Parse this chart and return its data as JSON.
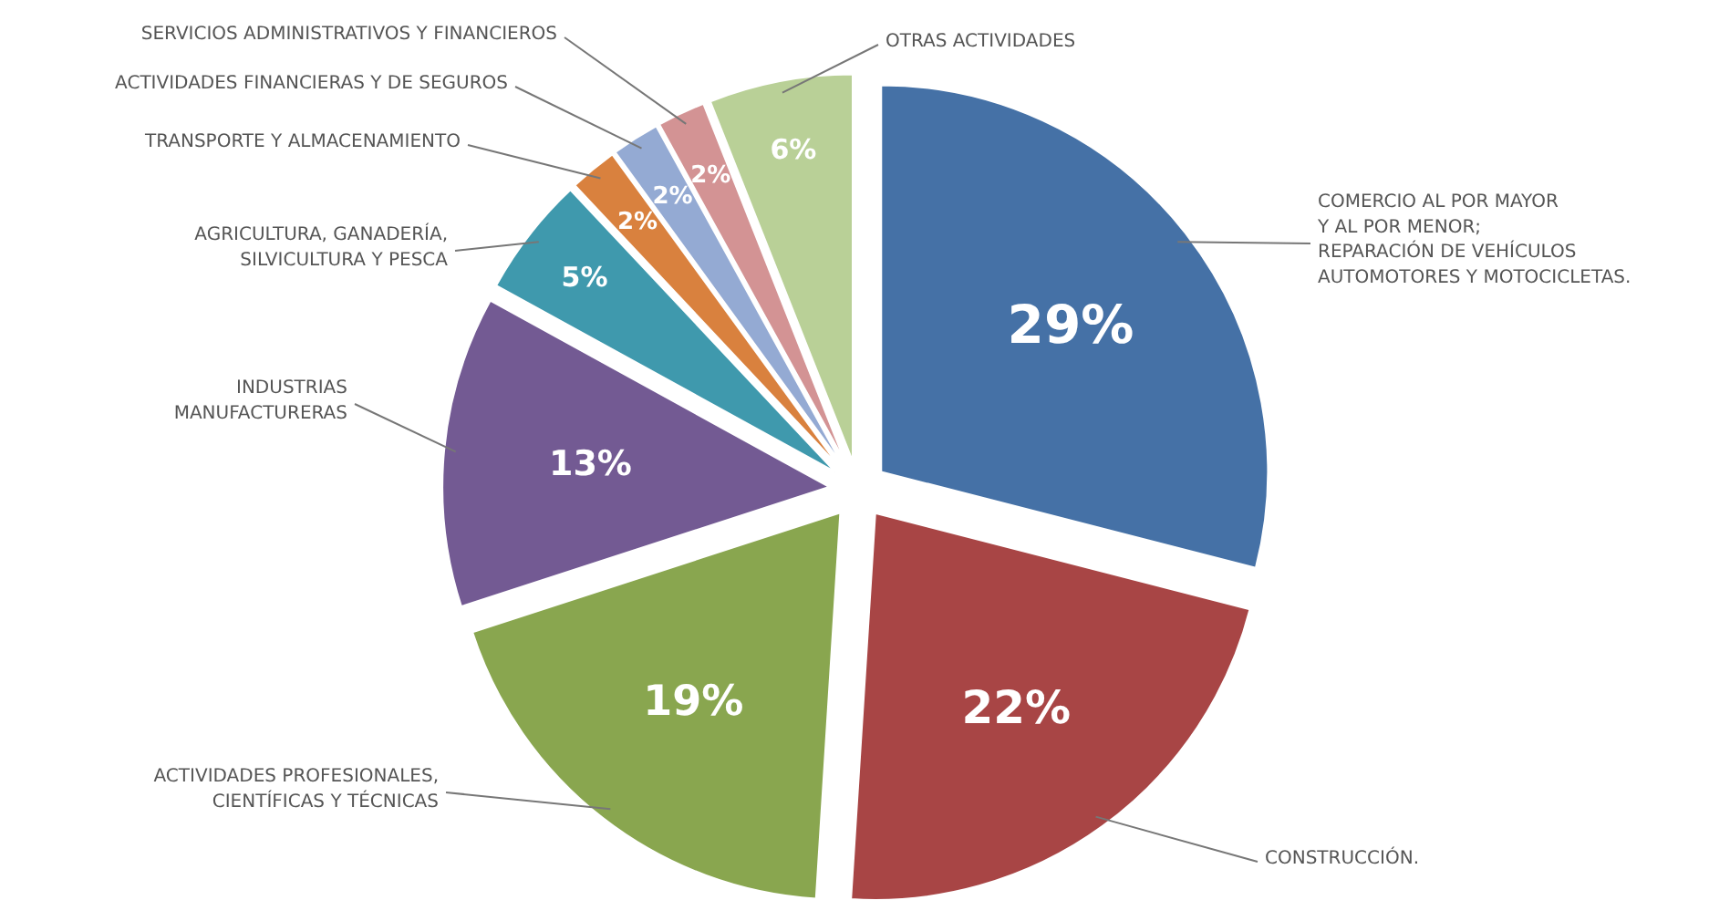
{
  "chart_data": {
    "type": "pie",
    "categories": [
      "COMERCIO AL POR MAYOR\nY AL POR MENOR;\nREPARACIÓN DE VEHÍCULOS\nAUTOMOTORES Y MOTOCICLETAS.",
      "CONSTRUCCIÓN.",
      "ACTIVIDADES PROFESIONALES,\nCIENTÍFICAS Y TÉCNICAS",
      "INDUSTRIAS\nMANUFACTURERAS",
      "AGRICULTURA, GANADERÍA,\nSILVICULTURA Y PESCA",
      "TRANSPORTE Y ALMACENAMIENTO",
      "ACTIVIDADES FINANCIERAS Y DE SEGUROS",
      "SERVICIOS ADMINISTRATIVOS Y FINANCIEROS",
      "OTRAS ACTIVIDADES"
    ],
    "values": [
      29,
      22,
      19,
      13,
      5,
      2,
      2,
      2,
      6
    ],
    "value_labels": [
      "29%",
      "22%",
      "19%",
      "13%",
      "5%",
      "2%",
      "2%",
      "2%",
      "6%"
    ],
    "colors": [
      "#4571a6",
      "#a84545",
      "#89a64f",
      "#735a93",
      "#3f99ad",
      "#d9813e",
      "#94aad3",
      "#d39394",
      "#b9d097"
    ]
  }
}
